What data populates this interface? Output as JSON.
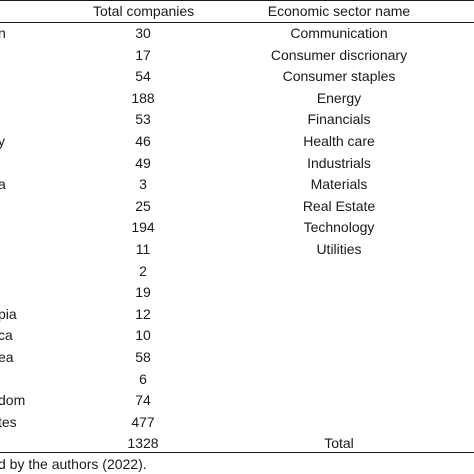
{
  "header": {
    "total_companies": "Total companies",
    "sector_name": "Economic sector name"
  },
  "rows": [
    {
      "country": "n",
      "total": "30",
      "sector": "Communication"
    },
    {
      "country": "",
      "total": "17",
      "sector": "Consumer discrionary"
    },
    {
      "country": "",
      "total": "54",
      "sector": "Consumer staples"
    },
    {
      "country": "",
      "total": "188",
      "sector": "Energy"
    },
    {
      "country": "",
      "total": "53",
      "sector": "Financials"
    },
    {
      "country": "y",
      "total": "46",
      "sector": "Health care"
    },
    {
      "country": "",
      "total": "49",
      "sector": "Industrials"
    },
    {
      "country": "a",
      "total": "3",
      "sector": "Materials"
    },
    {
      "country": "",
      "total": "25",
      "sector": "Real Estate"
    },
    {
      "country": "",
      "total": "194",
      "sector": "Technology"
    },
    {
      "country": "",
      "total": "11",
      "sector": "Utilities"
    },
    {
      "country": "",
      "total": "2",
      "sector": ""
    },
    {
      "country": "",
      "total": "19",
      "sector": ""
    },
    {
      "country": "pia",
      "total": "12",
      "sector": ""
    },
    {
      "country": "ca",
      "total": "10",
      "sector": ""
    },
    {
      "country": "ea",
      "total": "58",
      "sector": ""
    },
    {
      "country": "",
      "total": "6",
      "sector": ""
    },
    {
      "country": "dom",
      "total": "74",
      "sector": ""
    },
    {
      "country": "tes",
      "total": "477",
      "sector": ""
    },
    {
      "country": "",
      "total": "1328",
      "sector": "Total"
    }
  ],
  "source_note": "d by the authors (2022)."
}
